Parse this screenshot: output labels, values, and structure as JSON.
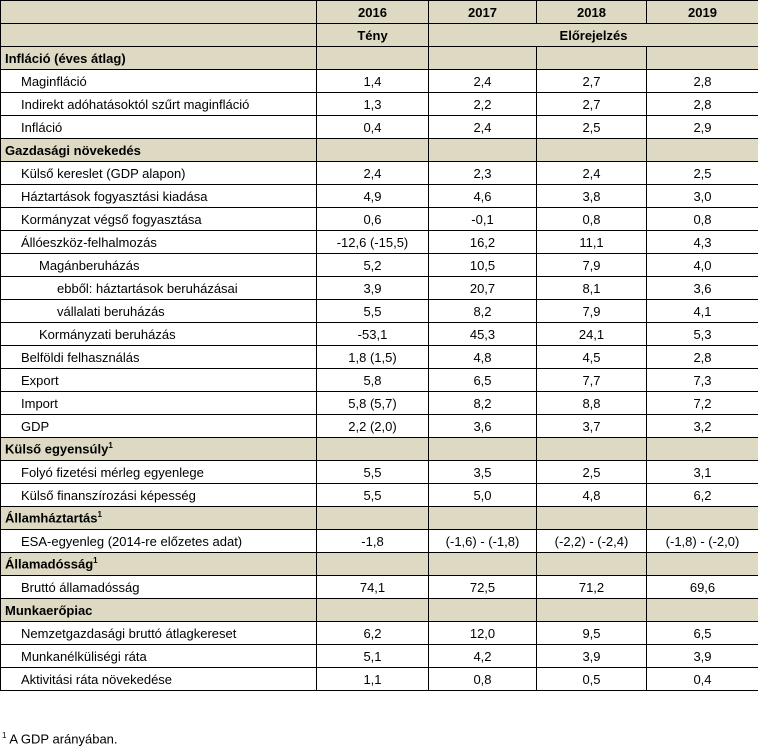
{
  "header": {
    "years": [
      "2016",
      "2017",
      "2018",
      "2019"
    ],
    "fact": "Tény",
    "forecast": "Előrejelzés"
  },
  "sections": {
    "inflation": "Infláció (éves átlag)",
    "growth": "Gazdasági növekedés",
    "external": "Külső egyensúly",
    "gov": "Államháztartás",
    "debt": "Államadósság",
    "labour": "Munkaerőpiac",
    "note_mark": "1"
  },
  "rows": [
    {
      "label": "Maginfláció",
      "v": [
        "1,4",
        "2,4",
        "2,7",
        "2,8"
      ]
    },
    {
      "label": "Indirekt adóhatásoktól szűrt maginfláció",
      "v": [
        "1,3",
        "2,2",
        "2,7",
        "2,8"
      ]
    },
    {
      "label": "Infláció",
      "v": [
        "0,4",
        "2,4",
        "2,5",
        "2,9"
      ]
    },
    {
      "label": "Külső kereslet (GDP alapon)",
      "v": [
        "2,4",
        "2,3",
        "2,4",
        "2,5"
      ]
    },
    {
      "label": "Háztartások fogyasztási kiadása",
      "v": [
        "4,9",
        "4,6",
        "3,8",
        "3,0"
      ]
    },
    {
      "label": "Kormányzat végső fogyasztása",
      "v": [
        "0,6",
        "-0,1",
        "0,8",
        "0,8"
      ]
    },
    {
      "label": "Állóeszköz-felhalmozás",
      "v": [
        "-12,6 (-15,5)",
        "16,2",
        "11,1",
        "4,3"
      ]
    },
    {
      "label": "Magánberuházás",
      "v": [
        "5,2",
        "10,5",
        "7,9",
        "4,0"
      ]
    },
    {
      "label": "ebből: háztartások beruházásai",
      "v": [
        "3,9",
        "20,7",
        "8,1",
        "3,6"
      ]
    },
    {
      "label": "vállalati beruházás",
      "v": [
        "5,5",
        "8,2",
        "7,9",
        "4,1"
      ]
    },
    {
      "label": "Kormányzati beruházás",
      "v": [
        "-53,1",
        "45,3",
        "24,1",
        "5,3"
      ]
    },
    {
      "label": "Belföldi felhasználás",
      "v": [
        "1,8 (1,5)",
        "4,8",
        "4,5",
        "2,8"
      ]
    },
    {
      "label": "Export",
      "v": [
        "5,8",
        "6,5",
        "7,7",
        "7,3"
      ]
    },
    {
      "label": "Import",
      "v": [
        "5,8 (5,7)",
        "8,2",
        "8,8",
        "7,2"
      ]
    },
    {
      "label": "GDP",
      "v": [
        "2,2 (2,0)",
        "3,6",
        "3,7",
        "3,2"
      ]
    },
    {
      "label": "Folyó fizetési mérleg egyenlege",
      "v": [
        "5,5",
        "3,5",
        "2,5",
        "3,1"
      ]
    },
    {
      "label": "Külső finanszírozási képesség",
      "v": [
        "5,5",
        "5,0",
        "4,8",
        "6,2"
      ]
    },
    {
      "label": "ESA-egyenleg (2014-re előzetes adat)",
      "v": [
        "-1,8",
        "(-1,6) - (-1,8)",
        "(-2,2) - (-2,4)",
        "(-1,8) - (-2,0)"
      ]
    },
    {
      "label": "Bruttó államadósság",
      "v": [
        "74,1",
        "72,5",
        "71,2",
        "69,6"
      ]
    },
    {
      "label": "Nemzetgazdasági bruttó átlagkereset",
      "v": [
        "6,2",
        "12,0",
        "9,5",
        "6,5"
      ]
    },
    {
      "label": "Munkanélküliségi ráta",
      "v": [
        "5,1",
        "4,2",
        "3,9",
        "3,9"
      ]
    },
    {
      "label": "Aktivitási ráta növekedése",
      "v": [
        "1,1",
        "0,8",
        "0,5",
        "0,4"
      ]
    }
  ],
  "footnote": {
    "mark": "1",
    "text": " A GDP arányában."
  }
}
